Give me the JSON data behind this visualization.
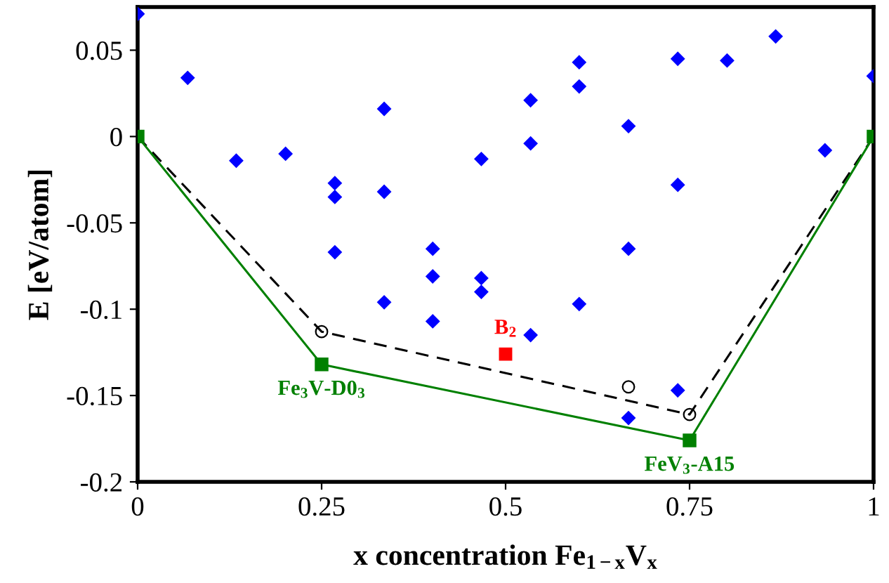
{
  "chart_data": {
    "type": "scatter",
    "xlabel": "x concentration Fe$_{1−x}$V$_{x}$",
    "ylabel": "E [eV/atom]",
    "xlim": [
      0,
      1
    ],
    "ylim": [
      -0.2,
      0.075
    ],
    "xticks": [
      0,
      0.25,
      0.5,
      0.75,
      1
    ],
    "yticks": [
      -0.2,
      -0.15,
      -0.1,
      -0.05,
      0,
      0.05
    ],
    "grid": false,
    "legend": false,
    "series": [
      {
        "marker": "diamond",
        "color": "#0000ff",
        "x": [
          0,
          0.068,
          0.335,
          0.134,
          0.201,
          0.467,
          0.268,
          0.268,
          0.335,
          0.268,
          0.401,
          0.401,
          0.467,
          0.867,
          0.6,
          0.734,
          0.801,
          1.0,
          0.6,
          0.534,
          0.534,
          0.667,
          0.934,
          0.734,
          0.667,
          0.335,
          0.467,
          0.401,
          0.6,
          0.534,
          0.734,
          0.667
        ],
        "values": [
          0.071,
          0.034,
          0.016,
          -0.014,
          -0.01,
          -0.013,
          -0.027,
          -0.035,
          -0.032,
          -0.067,
          -0.065,
          -0.081,
          -0.082,
          0.058,
          0.043,
          0.045,
          0.044,
          0.035,
          0.029,
          0.021,
          -0.004,
          0.006,
          -0.008,
          -0.028,
          -0.065,
          -0.096,
          -0.09,
          -0.107,
          -0.097,
          -0.115,
          -0.147,
          -0.163
        ]
      },
      {
        "type": "line",
        "line_style": "dashed",
        "marker": "none",
        "color": "#000000",
        "x": [
          0,
          0.25,
          0.75,
          1
        ],
        "values": [
          0,
          -0.113,
          -0.161,
          0
        ]
      },
      {
        "type": "scatter",
        "marker": "circle",
        "color": "#000000",
        "x": [
          0.25,
          0.667,
          0.75
        ],
        "values": [
          -0.113,
          -0.145,
          -0.161
        ]
      },
      {
        "type": "line",
        "line_style": "solid",
        "marker": "square",
        "color": "#008000",
        "x": [
          0,
          0.25,
          0.75,
          1
        ],
        "values": [
          0,
          -0.132,
          -0.176,
          0
        ]
      },
      {
        "type": "scatter",
        "marker": "square",
        "name": "B$_{2}$",
        "color": "#ff0000",
        "x": [
          0.5
        ],
        "values": [
          -0.126
        ]
      }
    ],
    "annotations": [
      {
        "text": "Fe$_{3}$V-D0$_{3}$",
        "x": 0.25,
        "y": -0.132
      },
      {
        "text": "FeV$_{3}$-A15",
        "x": 0.75,
        "y": -0.176
      }
    ]
  }
}
